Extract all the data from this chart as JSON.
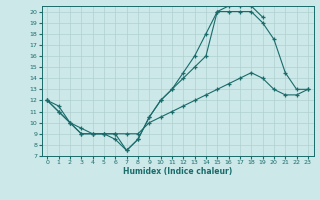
{
  "xlabel": "Humidex (Indice chaleur)",
  "ylabel": "",
  "bg_color": "#cce8e8",
  "line_color": "#1a6b6b",
  "grid_color": "#b0d0d0",
  "xlim": [
    -0.5,
    23.5
  ],
  "ylim": [
    7,
    20.5
  ],
  "xticks": [
    0,
    1,
    2,
    3,
    4,
    5,
    6,
    7,
    8,
    9,
    10,
    11,
    12,
    13,
    14,
    15,
    16,
    17,
    18,
    19,
    20,
    21,
    22,
    23
  ],
  "yticks": [
    7,
    8,
    9,
    10,
    11,
    12,
    13,
    14,
    15,
    16,
    17,
    18,
    19,
    20
  ],
  "curve_bottom_x": [
    0,
    1,
    2,
    3,
    4,
    5,
    6,
    7,
    8,
    9,
    10,
    11,
    12,
    13,
    14,
    15,
    16,
    17,
    18,
    19,
    20,
    21,
    22,
    23
  ],
  "curve_bottom_y": [
    12,
    11,
    10,
    9,
    9,
    9,
    9,
    9,
    9,
    10,
    10.5,
    11,
    11.5,
    12,
    12.5,
    13,
    13.5,
    14,
    14.5,
    14,
    13,
    12.5,
    12.5,
    13
  ],
  "curve_mid_x": [
    0,
    1,
    2,
    3,
    4,
    5,
    6,
    7,
    8,
    9,
    10,
    11,
    12,
    13,
    14,
    15,
    16,
    17,
    18,
    19,
    20,
    21,
    22,
    23
  ],
  "curve_mid_y": [
    12,
    11,
    10,
    9,
    9,
    9,
    8.5,
    7.5,
    8.5,
    10.5,
    12,
    13,
    14,
    15,
    16,
    20,
    20,
    20,
    20,
    19,
    17.5,
    14.5,
    13,
    13
  ],
  "curve_top_x": [
    0,
    1,
    2,
    3,
    4,
    5,
    6,
    7,
    8,
    9,
    10,
    11,
    12,
    13,
    14,
    15,
    16,
    17,
    18,
    19,
    20,
    21,
    22,
    23
  ],
  "curve_top_y": [
    12,
    11.5,
    10,
    9.5,
    9,
    9,
    9,
    7.5,
    8.5,
    10.5,
    12,
    13,
    14.5,
    16,
    18,
    20,
    20.5,
    20.5,
    20.5,
    19.5,
    null,
    null,
    null,
    null
  ]
}
